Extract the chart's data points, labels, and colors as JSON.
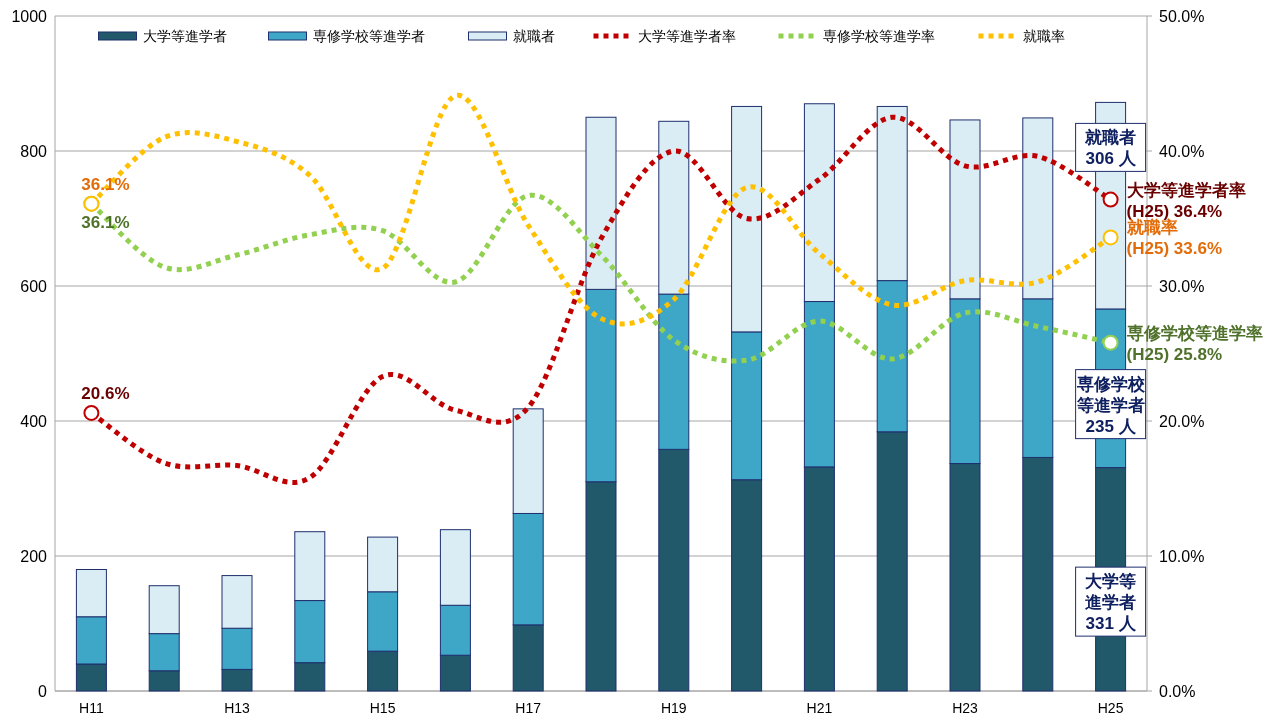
{
  "chart_data": {
    "type": "bar",
    "stacked": true,
    "categories": [
      "H11",
      null,
      "H13",
      null,
      "H15",
      null,
      "H17",
      null,
      "H19",
      null,
      "H21",
      null,
      "H23",
      null,
      "H25"
    ],
    "series": [
      {
        "name": "大学等進学者",
        "color": "#21586a",
        "values": [
          40,
          30,
          32,
          42,
          59,
          53,
          98,
          310,
          358,
          313,
          332,
          384,
          337,
          346,
          331
        ]
      },
      {
        "name": "専修学校等進学者",
        "color": "#3ea6c6",
        "values": [
          70,
          55,
          61,
          92,
          88,
          74,
          165,
          285,
          230,
          219,
          245,
          224,
          244,
          235,
          235
        ]
      },
      {
        "name": "就職者",
        "color": "#daedf4",
        "values": [
          70,
          71,
          78,
          102,
          81,
          112,
          155,
          255,
          256,
          334,
          293,
          258,
          265,
          268,
          306
        ]
      },
      {
        "name": "大学等進学者率",
        "type": "line",
        "axis": "y2",
        "color": "#c00000",
        "line_style": "dotted",
        "values": [
          20.6,
          16.9,
          16.7,
          15.8,
          23.3,
          20.8,
          21.0,
          33.5,
          40.0,
          35.0,
          37.9,
          42.5,
          38.9,
          39.6,
          36.4
        ],
        "value_labels": [
          "20.6%",
          null,
          null,
          null,
          null,
          null,
          null,
          null,
          null,
          null,
          null,
          null,
          null,
          null,
          "大学等進学者率\n(H25) 36.4%"
        ]
      },
      {
        "name": "専修学校等進学率",
        "type": "line",
        "axis": "y2",
        "color": "#92d050",
        "line_style": "dotted",
        "values": [
          36.1,
          31.4,
          32.3,
          33.8,
          34.1,
          30.3,
          36.7,
          32.3,
          26.0,
          24.5,
          27.4,
          24.6,
          28.0,
          27.0,
          25.8
        ],
        "value_labels": [
          "36.1%",
          null,
          null,
          null,
          null,
          null,
          null,
          null,
          null,
          null,
          null,
          null,
          null,
          null,
          "専修学校等進学率\n(H25) 25.8%"
        ]
      },
      {
        "name": "就職率",
        "type": "line",
        "axis": "y2",
        "color": "#ffc000",
        "line_style": "dotted",
        "values": [
          36.1,
          41.0,
          40.7,
          38.2,
          31.3,
          44.1,
          34.5,
          27.6,
          29.0,
          37.3,
          32.4,
          28.6,
          30.4,
          30.3,
          33.6
        ],
        "value_labels": [
          "36.1%",
          null,
          null,
          null,
          null,
          null,
          null,
          null,
          null,
          null,
          null,
          null,
          null,
          null,
          "就職率\n(H25) 33.6%"
        ]
      }
    ],
    "ylim": [
      0,
      1000
    ],
    "yticks": [
      0,
      200,
      400,
      600,
      800,
      1000
    ],
    "y2lim": [
      0,
      50
    ],
    "y2ticks": [
      {
        "value": 0,
        "label": "0.0%"
      },
      {
        "value": 10,
        "label": "10.0%"
      },
      {
        "value": 20,
        "label": "20.0%"
      },
      {
        "value": 30,
        "label": "30.0%"
      },
      {
        "value": 40,
        "label": "40.0%"
      },
      {
        "value": 50,
        "label": "50.0%"
      }
    ],
    "grid": "y",
    "legend": "top",
    "annotations": [
      "就職者306 人",
      "専修学校等進学者235 人",
      "大学等進学者331 人"
    ]
  }
}
